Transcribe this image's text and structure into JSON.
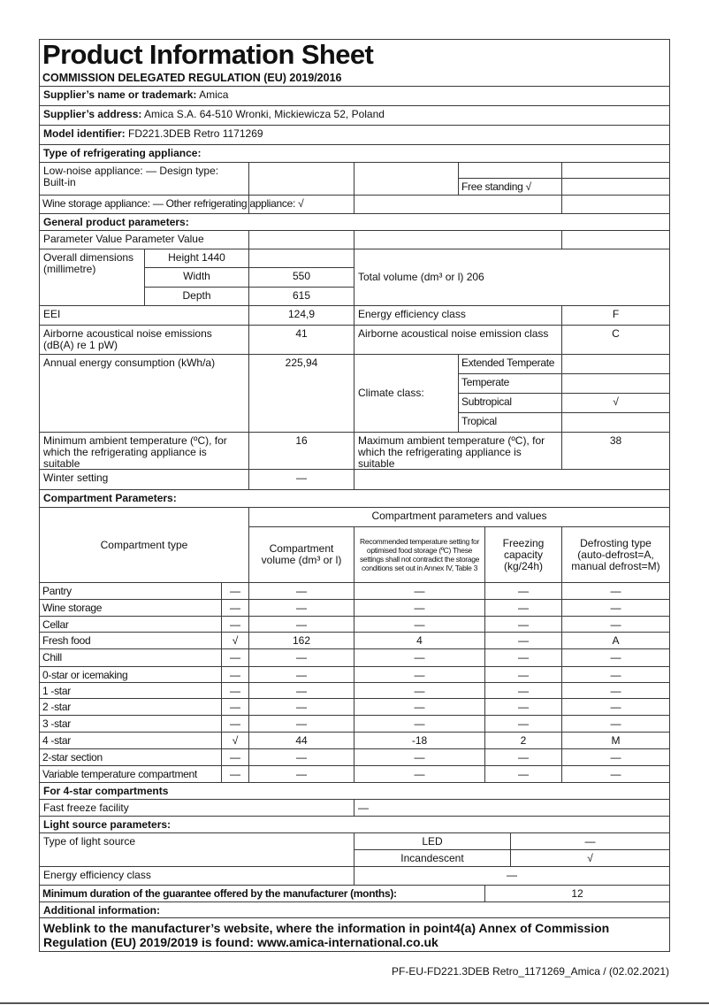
{
  "header": {
    "title": "Product Information Sheet",
    "regulation": "COMMISSION DELEGATED REGULATION (EU) 2019/2016"
  },
  "supplier": {
    "name_label": "Supplier’s name or trademark:",
    "name": " Amica",
    "address_label": "Supplier’s address:",
    "address": " Amica S.A. 64-510 Wronki, Mickiewicza 52, Poland",
    "model_label": "Model identifier:",
    "model": " FD221.3DEB Retro 1171269"
  },
  "appliance_type": {
    "heading": "Type of refrigerating appliance:",
    "low_noise": "Low-noise appliance: — Design type: Built-in",
    "free_standing": "Free standing √",
    "wine_storage": "Wine storage appliance: — Other refrigerating appliance: √"
  },
  "general": {
    "heading": "General product parameters:",
    "param_header": "Parameter Value Parameter Value",
    "dimensions_label": "Overall dimensions (millimetre)",
    "height": "Height 1440",
    "width_label": "Width",
    "width": "550",
    "depth_label": "Depth",
    "depth": "615",
    "total_volume": "Total volume (dm³ or l) 206",
    "eei_label": "EEI",
    "eei": "124,9",
    "energy_class_label": "Energy efficiency class",
    "energy_class": "F",
    "noise_label": "Airborne acoustical noise emissions (dB(A) re 1 pW)",
    "noise": "41",
    "noise_class_label": "Airborne acoustical noise emission class",
    "noise_class": "C",
    "annual_label": "Annual energy consumption (kWh/a)",
    "annual": "225,94",
    "climate_label": "Climate class:",
    "climate": [
      {
        "label": "Extended Temperate",
        "value": ""
      },
      {
        "label": "Temperate",
        "value": ""
      },
      {
        "label": "Subtropical",
        "value": "√"
      },
      {
        "label": "Tropical",
        "value": ""
      }
    ],
    "min_temp_label": "Minimum ambient temperature (ºC), for which the refrigerating appliance is suitable",
    "min_temp": "16",
    "max_temp_label": "Maximum ambient temperature (ºC), for which the refrigerating appliance is suitable",
    "max_temp": "38",
    "winter_label": "Winter setting",
    "winter": "—"
  },
  "compartments": {
    "heading": "Compartment Parameters:",
    "type_header": "Compartment type",
    "values_header": "Compartment parameters and values",
    "columns": [
      "Compartment volume (dm³ or l)",
      "Recommended temperature setting for optimised food storage (ºC) These settings shall not contradict the storage conditions set out in Annex IV, Table 3",
      "Freezing capacity (kg/24h)",
      "Defrosting type (auto-defrost=A, manual defrost=M)"
    ],
    "rows": [
      {
        "name": "Pantry",
        "values": [
          "—",
          "—",
          "—",
          "—",
          "—"
        ]
      },
      {
        "name": "Wine storage",
        "values": [
          "—",
          "—",
          "—",
          "—",
          "—"
        ]
      },
      {
        "name": "Cellar",
        "values": [
          "—",
          "—",
          "—",
          "—",
          "—"
        ]
      },
      {
        "name": "Fresh food",
        "values": [
          "√",
          "162",
          "4",
          "—",
          "A"
        ]
      },
      {
        "name": "Chill",
        "values": [
          "—",
          "—",
          "—",
          "—",
          "—"
        ]
      },
      {
        "name": "0-star or icemaking",
        "values": [
          "—",
          "—",
          "—",
          "—",
          "—"
        ]
      },
      {
        "name": "1 -star",
        "values": [
          "—",
          "—",
          "—",
          "—",
          "—"
        ]
      },
      {
        "name": "2 -star",
        "values": [
          "—",
          "—",
          "—",
          "—",
          "—"
        ]
      },
      {
        "name": "3 -star",
        "values": [
          "—",
          "—",
          "—",
          "—",
          "—"
        ]
      },
      {
        "name": "4 -star",
        "values": [
          "√",
          "44",
          "-18",
          "2",
          "M"
        ]
      },
      {
        "name": "2-star section",
        "values": [
          "—",
          "—",
          "—",
          "—",
          "—"
        ]
      },
      {
        "name": "Variable temperature compartment",
        "values": [
          "—",
          "—",
          "—",
          "—",
          "—"
        ]
      }
    ]
  },
  "four_star": {
    "heading": "For 4-star compartments",
    "fast_freeze_label": "Fast freeze facility",
    "fast_freeze": "—"
  },
  "light": {
    "heading": "Light source parameters:",
    "type_label": "Type of light source",
    "led_label": "LED",
    "led": "—",
    "incandescent_label": "Incandescent",
    "incandescent": "√",
    "energy_class_label": "Energy efficiency class",
    "energy_class": "—"
  },
  "guarantee": {
    "label": "Minimum duration of the guarantee offered by the manufacturer (months):",
    "value": "12"
  },
  "additional": {
    "heading": "Additional information:",
    "weblink": "Weblink to the manufacturer’s website, where the information in point4(a) Annex of Commission Regulation (EU) 2019/2019 is found: www.amica-international.co.uk"
  },
  "footer": {
    "doc_id": "PF-EU-FD221.3DEB Retro_1171269_Amica / (02.02.2021)"
  }
}
